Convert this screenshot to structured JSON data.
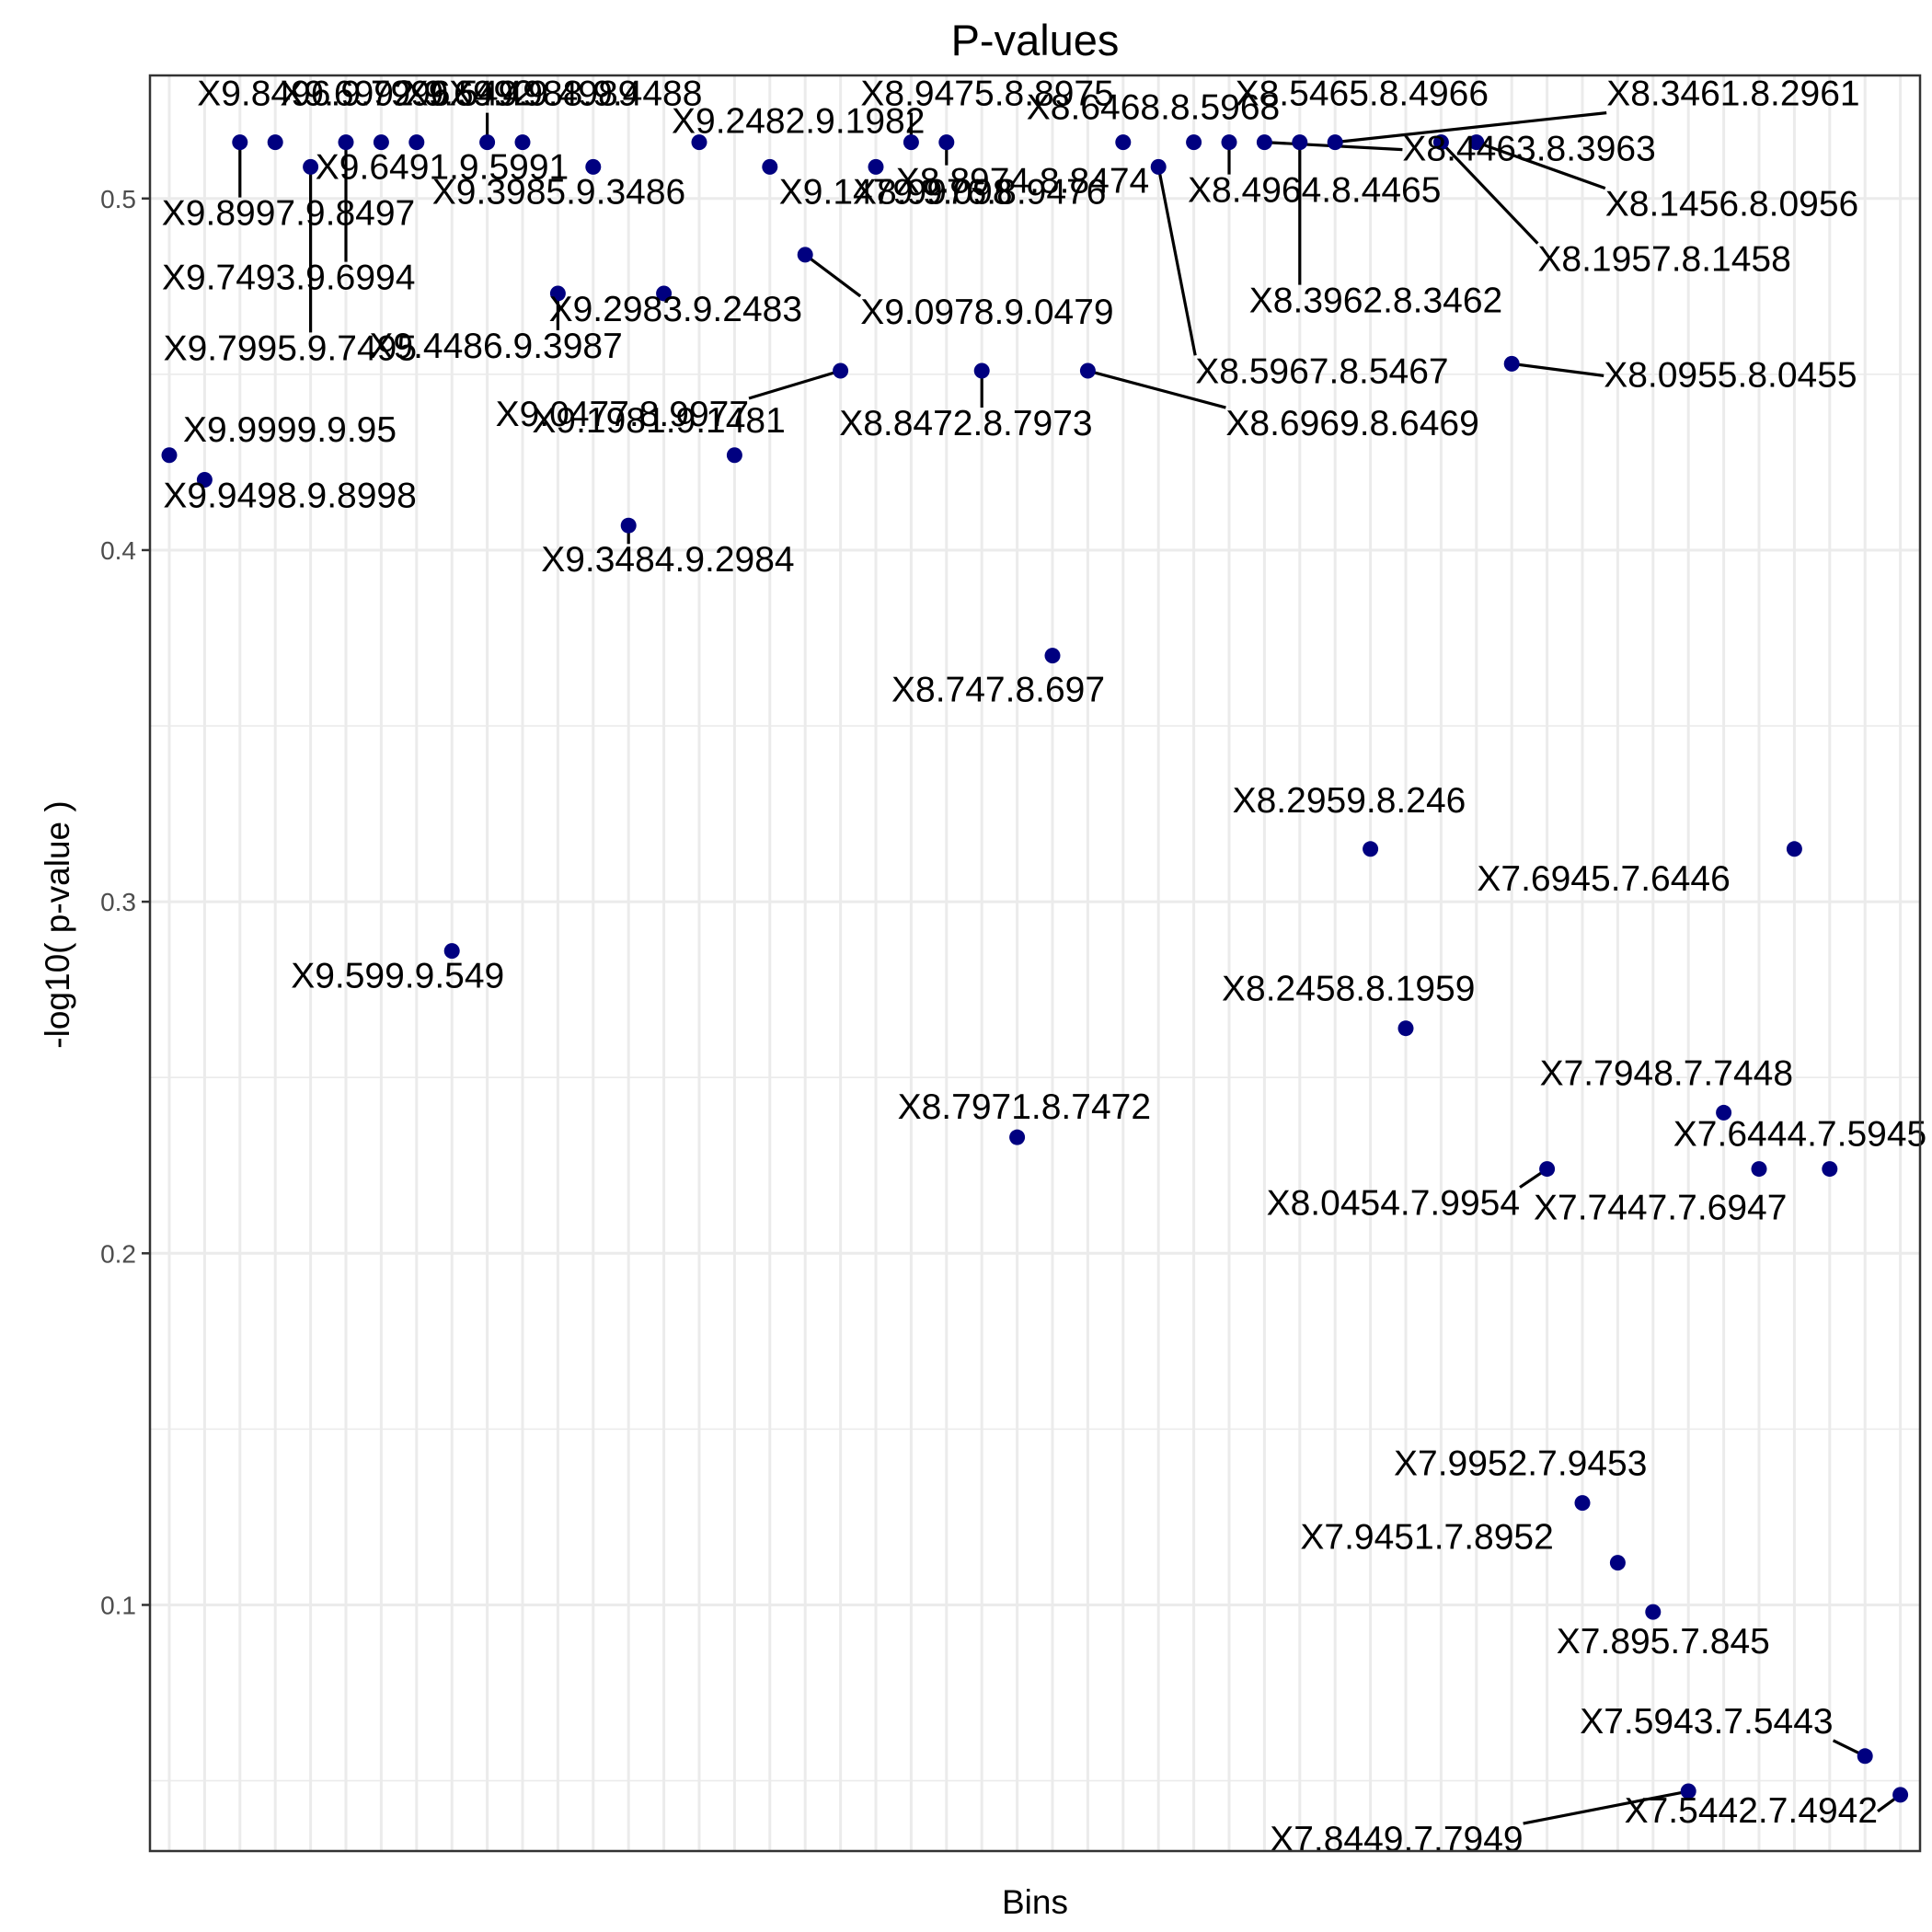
{
  "chart_data": {
    "type": "scatter",
    "title": "P-values",
    "xlabel": "Bins",
    "ylabel": "-log10( p-value )",
    "ylim": [
      0.03,
      0.535
    ],
    "yticks": [
      0.1,
      0.2,
      0.3,
      0.4,
      0.5
    ],
    "ytick_labels": [
      "0.1",
      "0.2",
      "0.3",
      "0.4",
      "0.5"
    ],
    "point_color": "#000080",
    "grid": true,
    "points": [
      {
        "label": "X9.9999.9.95",
        "y": 0.427
      },
      {
        "label": "X9.9498.9.8998",
        "y": 0.42
      },
      {
        "label": "X9.8997.9.8497",
        "y": 0.516
      },
      {
        "label": "X9.8496.9.7996",
        "y": 0.516
      },
      {
        "label": "X9.7995.9.7495",
        "y": 0.509
      },
      {
        "label": "X9.7493.9.6994",
        "y": 0.516
      },
      {
        "label": "X9.6992.9.6492",
        "y": 0.516
      },
      {
        "label": "X9.6491.9.5991",
        "y": 0.516
      },
      {
        "label": "X9.599.9.549",
        "y": 0.286
      },
      {
        "label": "X9.549.9.4989",
        "y": 0.516
      },
      {
        "label": "X9.4988.9.4488",
        "y": 0.516
      },
      {
        "label": "X9.4486.9.3987",
        "y": 0.473
      },
      {
        "label": "X9.3985.9.3486",
        "y": 0.509
      },
      {
        "label": "X9.3484.9.2984",
        "y": 0.407
      },
      {
        "label": "X9.2983.9.2483",
        "y": 0.473
      },
      {
        "label": "X9.2482.9.1982",
        "y": 0.516
      },
      {
        "label": "X9.1981.9.1481",
        "y": 0.427
      },
      {
        "label": "X9.1479.9.098",
        "y": 0.509
      },
      {
        "label": "X9.0978.9.0479",
        "y": 0.484
      },
      {
        "label": "X9.0477.8.9977",
        "y": 0.451
      },
      {
        "label": "X8.9976.8.9476",
        "y": 0.509
      },
      {
        "label": "X8.9475.8.8975",
        "y": 0.516
      },
      {
        "label": "X8.8974.8.8474",
        "y": 0.516
      },
      {
        "label": "X8.8472.8.7973",
        "y": 0.451
      },
      {
        "label": "X8.7971.8.7472",
        "y": 0.233
      },
      {
        "label": "X8.747.8.697",
        "y": 0.37
      },
      {
        "label": "X8.6969.8.6469",
        "y": 0.451
      },
      {
        "label": "X8.6468.8.5968",
        "y": 0.516
      },
      {
        "label": "X8.5967.8.5467",
        "y": 0.509
      },
      {
        "label": "X8.5465.8.4966",
        "y": 0.516
      },
      {
        "label": "X8.4964.8.4465",
        "y": 0.516
      },
      {
        "label": "X8.4463.8.3963",
        "y": 0.516
      },
      {
        "label": "X8.3962.8.3462",
        "y": 0.516
      },
      {
        "label": "X8.3461.8.2961",
        "y": 0.516
      },
      {
        "label": "X8.2959.8.246",
        "y": 0.315
      },
      {
        "label": "X8.2458.8.1959",
        "y": 0.264
      },
      {
        "label": "X8.1957.8.1458",
        "y": 0.516
      },
      {
        "label": "X8.1456.8.0956",
        "y": 0.516
      },
      {
        "label": "X8.0955.8.0455",
        "y": 0.453
      },
      {
        "label": "X8.0454.7.9954",
        "y": 0.224
      },
      {
        "label": "X7.9952.7.9453",
        "y": 0.129
      },
      {
        "label": "X7.9451.7.8952",
        "y": 0.112
      },
      {
        "label": "X7.895.7.845",
        "y": 0.098
      },
      {
        "label": "X7.8449.7.7949",
        "y": 0.047
      },
      {
        "label": "X7.7948.7.7448",
        "y": 0.24
      },
      {
        "label": "X7.7447.7.6947",
        "y": 0.224
      },
      {
        "label": "X7.6945.7.6446",
        "y": 0.315
      },
      {
        "label": "X7.6444.7.5945",
        "y": 0.224
      },
      {
        "label": "X7.5943.7.5443",
        "y": 0.057
      },
      {
        "label": "X7.5442.7.4942",
        "y": 0.046
      }
    ]
  }
}
